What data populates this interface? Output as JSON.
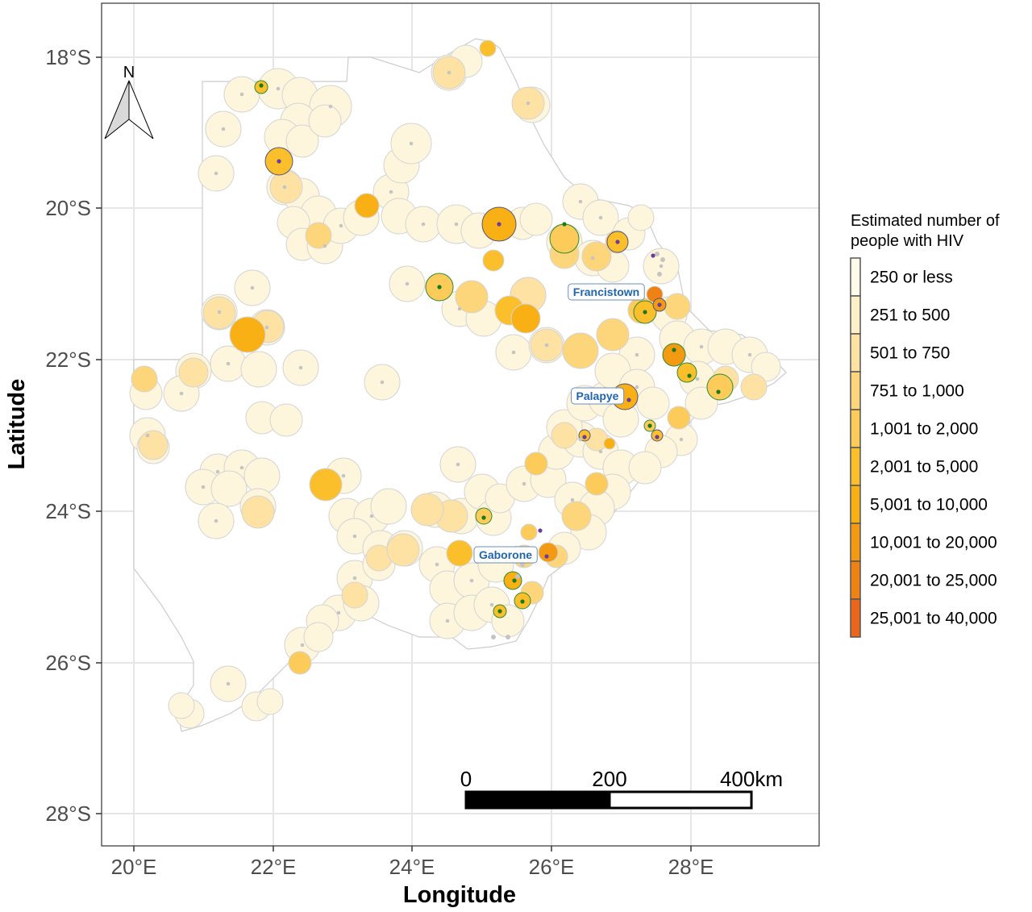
{
  "axes": {
    "x_title": "Longitude",
    "y_title": "Latitude",
    "x_ticks": [
      "20°E",
      "22°E",
      "24°E",
      "26°E",
      "28°E"
    ],
    "y_ticks": [
      "18°S",
      "20°S",
      "22°S",
      "24°S",
      "26°S",
      "28°S"
    ]
  },
  "north_arrow": {
    "label": "N",
    "icon": "north-arrow-icon"
  },
  "scale_bar": {
    "labels": [
      "0",
      "200",
      "400km"
    ]
  },
  "cities": [
    {
      "name": "Francistown",
      "lon": 27.5,
      "lat": -21.17
    },
    {
      "name": "Palapye",
      "lon": 27.12,
      "lat": -22.55
    },
    {
      "name": "Gaborone",
      "lon": 25.92,
      "lat": -24.65
    }
  ],
  "legend": {
    "title_lines": [
      "Estimated number of",
      "people with HIV"
    ],
    "items": [
      {
        "label": "250 or less",
        "color": "#fffbea"
      },
      {
        "label": "251 to 500",
        "color": "#fdf0c8"
      },
      {
        "label": "501 to 750",
        "color": "#fde2a3"
      },
      {
        "label": "751 to 1,000",
        "color": "#fdd57a"
      },
      {
        "label": "1,001 to 2,000",
        "color": "#fccb5a"
      },
      {
        "label": "2,001 to 5,000",
        "color": "#fbbf2c"
      },
      {
        "label": "5,001 to 10,000",
        "color": "#f8b015"
      },
      {
        "label": "10,001 to 20,000",
        "color": "#f49a12"
      },
      {
        "label": "20,001 to 25,000",
        "color": "#ef8214"
      },
      {
        "label": "25,001 to 40,000",
        "color": "#e9661a"
      }
    ]
  }
}
